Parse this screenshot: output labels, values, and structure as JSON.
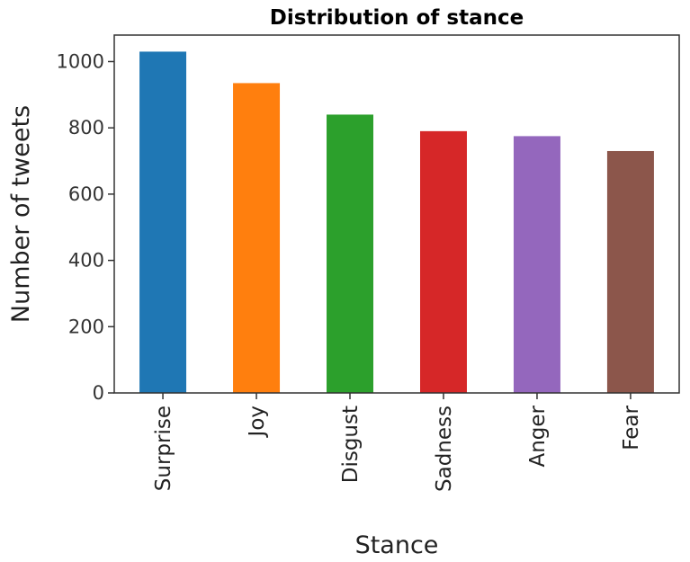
{
  "chart_data": {
    "type": "bar",
    "title": "Distribution of stance",
    "xlabel": "Stance",
    "ylabel": "Number of tweets",
    "categories": [
      "Surprise",
      "Joy",
      "Disgust",
      "Sadness",
      "Anger",
      "Fear"
    ],
    "values": [
      1030,
      935,
      840,
      790,
      775,
      730
    ],
    "colors": [
      "#1f77b4",
      "#ff7f0e",
      "#2ca02c",
      "#d62728",
      "#9467bd",
      "#8c564b"
    ],
    "ylim": [
      0,
      1080
    ],
    "yticks": [
      0,
      200,
      400,
      600,
      800,
      1000
    ],
    "grid": false,
    "legend": "none"
  }
}
